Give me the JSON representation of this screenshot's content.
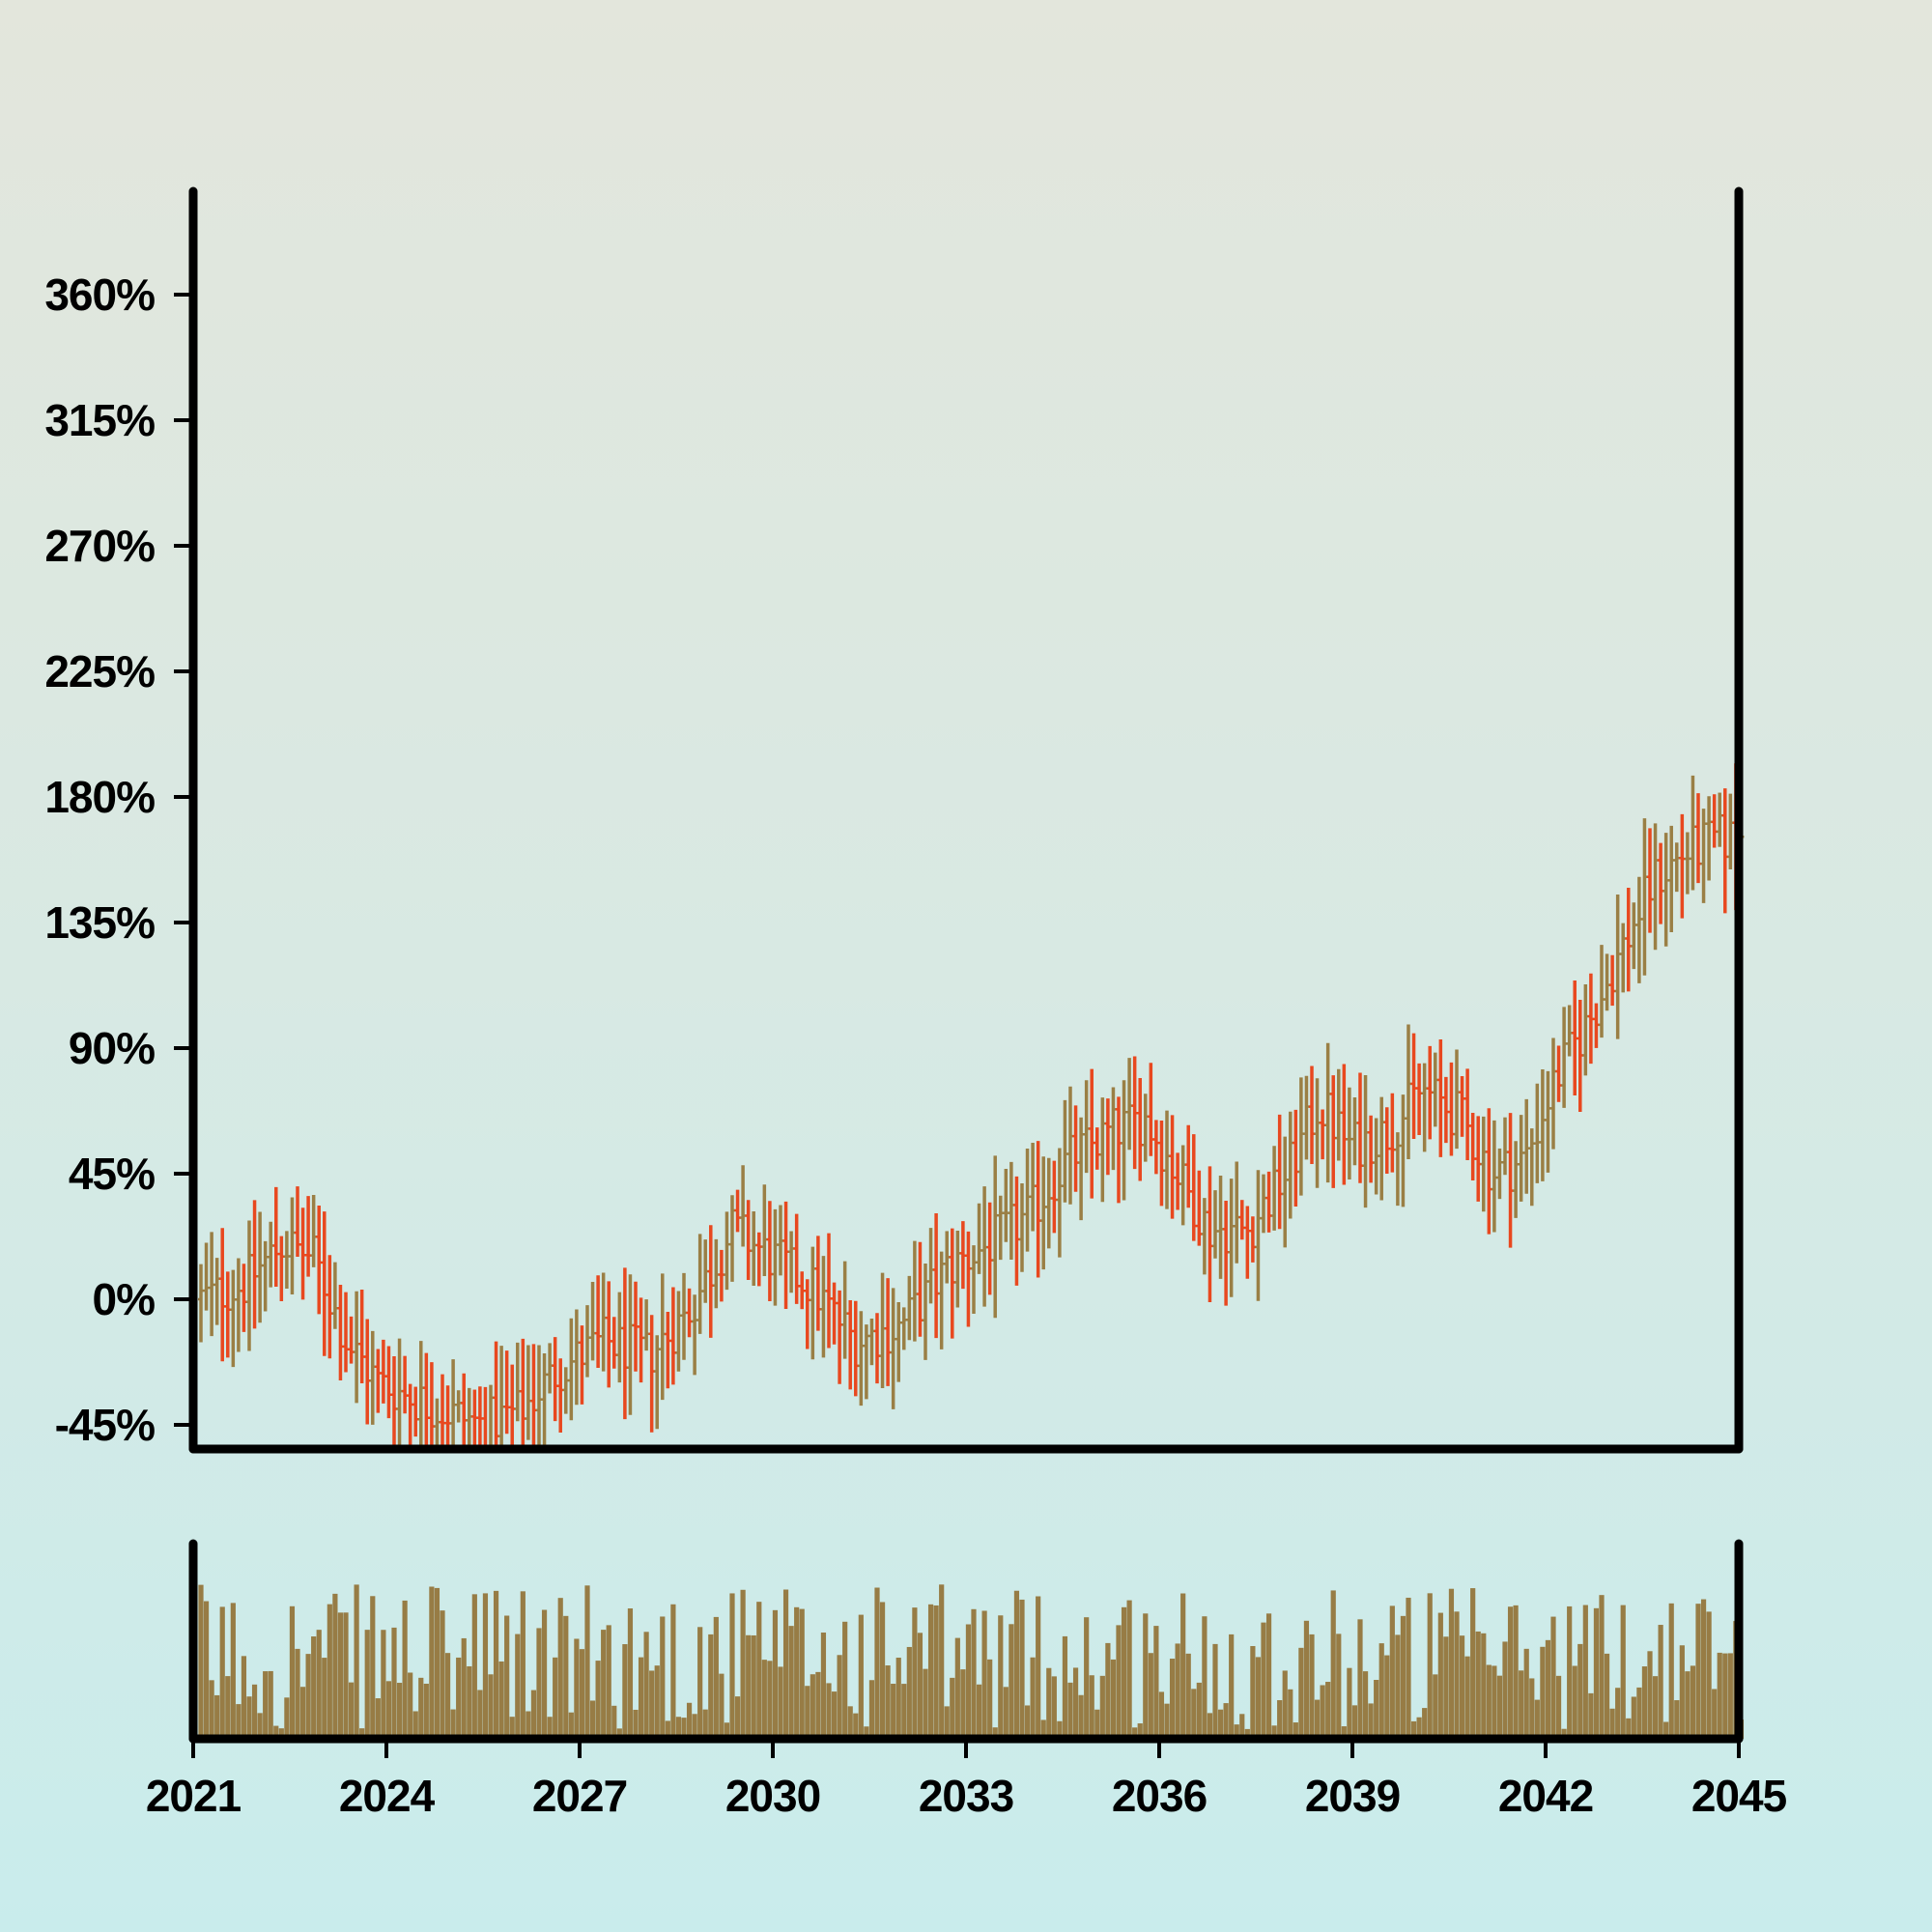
{
  "chart_data": {
    "type": "ohlc",
    "title": "",
    "xlabel": "",
    "ylabel": "",
    "x_range": [
      2021,
      2045
    ],
    "ylim": [
      -45,
      405
    ],
    "y_unit": "%",
    "y_ticks": [
      "360%",
      "315%",
      "270%",
      "225%",
      "180%",
      "135%",
      "90%",
      "45%",
      "0%",
      "-45%"
    ],
    "x_ticks": [
      "2021",
      "2024",
      "2027",
      "2030",
      "2033",
      "2036",
      "2039",
      "2042",
      "2045"
    ],
    "bars_per_year": 12,
    "colors": {
      "up": "#9a7f45",
      "down": "#e8481f",
      "volume": "#977c45",
      "axis": "#000000"
    },
    "series": [
      {
        "kind": "ohlc_close_trend",
        "description_points": [
          [
            2021.0,
            0
          ],
          [
            2021.7,
            5
          ],
          [
            2022.3,
            20
          ],
          [
            2022.8,
            15
          ],
          [
            2023.3,
            -15
          ],
          [
            2023.8,
            -30
          ],
          [
            2024.3,
            -35
          ],
          [
            2024.8,
            -40
          ],
          [
            2025.4,
            -45
          ],
          [
            2026.0,
            -40
          ],
          [
            2026.6,
            -25
          ],
          [
            2027.3,
            -15
          ],
          [
            2028.0,
            -20
          ],
          [
            2028.6,
            -5
          ],
          [
            2029.3,
            25
          ],
          [
            2029.9,
            15
          ],
          [
            2030.5,
            5
          ],
          [
            2031.2,
            -15
          ],
          [
            2031.9,
            -10
          ],
          [
            2032.6,
            10
          ],
          [
            2033.3,
            20
          ],
          [
            2033.9,
            30
          ],
          [
            2034.5,
            50
          ],
          [
            2035.2,
            60
          ],
          [
            2035.7,
            65
          ],
          [
            2036.2,
            45
          ],
          [
            2036.7,
            25
          ],
          [
            2037.3,
            25
          ],
          [
            2037.9,
            45
          ],
          [
            2038.4,
            70
          ],
          [
            2038.9,
            55
          ],
          [
            2039.5,
            60
          ],
          [
            2040.0,
            75
          ],
          [
            2040.6,
            65
          ],
          [
            2041.1,
            45
          ],
          [
            2041.6,
            50
          ],
          [
            2042.1,
            80
          ],
          [
            2042.6,
            100
          ],
          [
            2043.1,
            125
          ],
          [
            2043.6,
            150
          ],
          [
            2044.1,
            160
          ],
          [
            2044.6,
            165
          ],
          [
            2045.0,
            165
          ]
        ]
      }
    ]
  }
}
